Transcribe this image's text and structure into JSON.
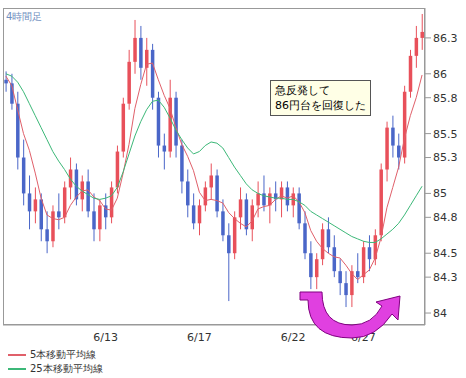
{
  "chart_data": {
    "type": "candlestick",
    "title": "4時間足",
    "categories": [
      null,
      null,
      null,
      null,
      null,
      null,
      null,
      null,
      null,
      null,
      null,
      null,
      null,
      null,
      null,
      null,
      null,
      "6/13",
      null,
      null,
      null,
      null,
      null,
      null,
      null,
      null,
      null,
      null,
      null,
      null,
      null,
      null,
      null,
      "6/17",
      null,
      null,
      null,
      null,
      null,
      null,
      null,
      null,
      null,
      null,
      null,
      null,
      null,
      null,
      null,
      "6/22",
      null,
      null,
      null,
      null,
      null,
      null,
      null,
      null,
      null,
      null,
      null,
      "6/27",
      null,
      null,
      null,
      null,
      null,
      null,
      null,
      null,
      null,
      null
    ],
    "open": [
      85.95,
      85.92,
      85.75,
      85.3,
      85.0,
      84.85,
      84.95,
      84.7,
      84.6,
      84.85,
      84.8,
      85.05,
      85.2,
      84.95,
      85.1,
      84.85,
      84.7,
      84.9,
      84.8,
      85.05,
      85.35,
      85.75,
      86.1,
      86.3,
      86.05,
      86.2,
      85.8,
      85.4,
      85.35,
      85.8,
      85.4,
      85.1,
      84.9,
      84.75,
      84.9,
      85.05,
      85.15,
      84.85,
      84.65,
      84.5,
      84.8,
      84.95,
      84.7,
      84.9,
      85.0,
      84.9,
      85.0,
      84.95,
      85.05,
      84.9,
      85.0,
      84.75,
      84.5,
      84.3,
      84.45,
      84.7,
      84.55,
      84.35,
      84.25,
      84.15,
      84.35,
      84.3,
      84.55,
      84.45,
      84.65,
      85.2,
      85.55,
      85.4,
      85.3,
      85.85,
      86.15,
      86.3
    ],
    "high": [
      86.02,
      86.0,
      85.85,
      85.45,
      85.15,
      85.05,
      85.0,
      84.85,
      84.9,
      85.0,
      85.1,
      85.3,
      85.25,
      85.15,
      85.2,
      85.0,
      84.95,
      85.0,
      85.1,
      85.4,
      85.8,
      86.2,
      86.45,
      86.4,
      86.3,
      86.25,
      85.85,
      85.5,
      85.95,
      85.85,
      85.45,
      85.2,
      85.0,
      84.95,
      85.1,
      85.25,
      85.2,
      84.95,
      84.75,
      84.85,
      85.05,
      85.0,
      84.95,
      85.1,
      85.15,
      85.05,
      85.1,
      85.1,
      85.1,
      85.05,
      85.05,
      84.85,
      84.6,
      84.5,
      84.75,
      84.8,
      84.65,
      84.45,
      84.35,
      84.4,
      84.5,
      84.6,
      84.65,
      84.7,
      85.25,
      85.6,
      85.65,
      85.5,
      85.9,
      86.2,
      86.4,
      86.5
    ],
    "low": [
      85.85,
      85.7,
      85.2,
      84.9,
      84.7,
      84.75,
      84.6,
      84.5,
      84.55,
      84.7,
      84.75,
      84.95,
      84.9,
      84.85,
      84.8,
      84.6,
      84.6,
      84.7,
      84.75,
      85.0,
      85.3,
      85.7,
      86.0,
      85.95,
      85.9,
      85.7,
      85.3,
      85.2,
      85.3,
      85.3,
      85.0,
      84.8,
      84.7,
      84.65,
      84.85,
      84.95,
      84.8,
      84.6,
      84.1,
      84.45,
      84.7,
      84.65,
      84.6,
      84.8,
      84.85,
      84.75,
      84.85,
      84.8,
      84.85,
      84.8,
      84.7,
      84.45,
      84.2,
      84.2,
      84.4,
      84.5,
      84.3,
      84.15,
      84.05,
      84.05,
      84.25,
      84.25,
      84.35,
      84.4,
      84.6,
      85.1,
      85.3,
      85.2,
      85.25,
      85.8,
      86.05,
      86.2
    ],
    "close": [
      85.92,
      85.75,
      85.3,
      85.0,
      84.85,
      84.95,
      84.7,
      84.6,
      84.85,
      84.8,
      85.05,
      85.2,
      84.95,
      85.1,
      84.85,
      84.7,
      84.9,
      84.8,
      85.05,
      85.35,
      85.75,
      86.1,
      86.3,
      86.05,
      86.2,
      85.8,
      85.4,
      85.35,
      85.8,
      85.4,
      85.1,
      84.9,
      84.75,
      84.9,
      85.05,
      85.15,
      84.85,
      84.65,
      84.5,
      84.8,
      84.95,
      84.7,
      84.9,
      85.0,
      84.9,
      85.0,
      84.95,
      85.05,
      84.9,
      85.0,
      84.75,
      84.5,
      84.3,
      84.45,
      84.7,
      84.55,
      84.35,
      84.25,
      84.15,
      84.35,
      84.3,
      84.55,
      84.45,
      84.65,
      85.2,
      85.55,
      85.4,
      85.3,
      85.85,
      86.15,
      86.3,
      86.35
    ],
    "series": [
      {
        "name": "5本移動平均線",
        "color": "#e0606a",
        "values": [
          85.98,
          85.9,
          85.7,
          85.5,
          85.36,
          85.17,
          84.96,
          84.82,
          84.79,
          84.78,
          84.8,
          84.9,
          84.97,
          85.02,
          85.03,
          84.97,
          84.94,
          84.87,
          84.86,
          84.96,
          85.17,
          85.41,
          85.71,
          85.91,
          86.08,
          86.09,
          85.95,
          85.82,
          85.71,
          85.55,
          85.41,
          85.31,
          85.19,
          85.01,
          84.94,
          84.95,
          84.94,
          84.92,
          84.84,
          84.79,
          84.75,
          84.72,
          84.77,
          84.87,
          84.89,
          84.9,
          84.95,
          84.98,
          84.96,
          84.98,
          84.93,
          84.84,
          84.69,
          84.6,
          84.54,
          84.5,
          84.47,
          84.46,
          84.4,
          84.33,
          84.28,
          84.32,
          84.36,
          84.46,
          84.63,
          84.88,
          85.05,
          85.22,
          85.46,
          85.65,
          85.8,
          85.99
        ]
      },
      {
        "name": "25本移動平均線",
        "color": "#3cb878",
        "values": [
          86.0,
          85.98,
          85.93,
          85.85,
          85.75,
          85.65,
          85.55,
          85.45,
          85.35,
          85.27,
          85.2,
          85.12,
          85.06,
          85.02,
          84.99,
          84.96,
          84.95,
          84.96,
          84.98,
          85.05,
          85.18,
          85.33,
          85.48,
          85.6,
          85.7,
          85.77,
          85.78,
          85.72,
          85.63,
          85.53,
          85.45,
          85.38,
          85.33,
          85.35,
          85.4,
          85.43,
          85.42,
          85.38,
          85.3,
          85.22,
          85.15,
          85.08,
          85.03,
          85.0,
          84.98,
          84.97,
          84.96,
          84.96,
          84.95,
          84.95,
          84.93,
          84.9,
          84.85,
          84.82,
          84.79,
          84.76,
          84.73,
          84.7,
          84.67,
          84.64,
          84.62,
          84.6,
          84.59,
          84.59,
          84.62,
          84.66,
          84.7,
          84.75,
          84.82,
          84.9,
          84.98,
          85.06
        ]
      }
    ],
    "annotation": [
      "急反発して",
      "86円台を回復した"
    ],
    "ylim": [
      83.9,
      86.55
    ],
    "yticks": [
      84,
      84.3,
      84.5,
      84.8,
      85,
      85.3,
      85.5,
      85.8,
      86,
      86.3
    ],
    "legend": "bottom"
  }
}
